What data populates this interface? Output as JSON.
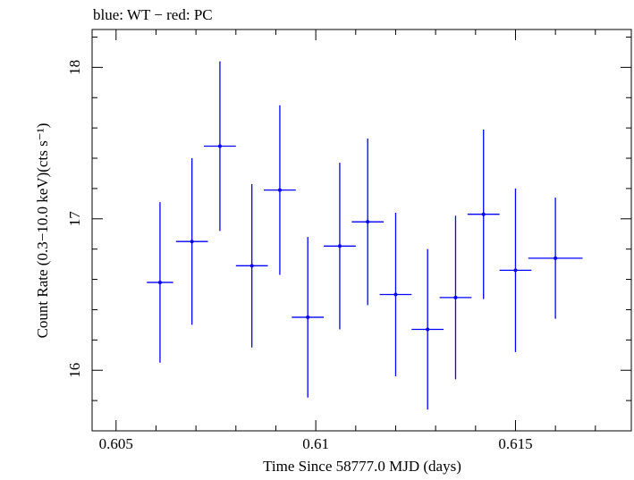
{
  "chart_data": {
    "type": "scatter",
    "title": "blue: WT − red: PC",
    "xlabel": "Time Since 58777.0 MJD (days)",
    "ylabel": "Count Rate (0.3−10.0 keV)(cts s⁻¹)",
    "xlim": [
      0.6044,
      0.6179
    ],
    "ylim": [
      15.6,
      18.25
    ],
    "x_ticks": [
      0.605,
      0.61,
      0.615
    ],
    "x_tick_labels": [
      "0.605",
      "0.61",
      "0.615"
    ],
    "y_ticks": [
      16,
      17,
      18
    ],
    "y_tick_labels": [
      "16",
      "17",
      "18"
    ],
    "grid": false,
    "series": [
      {
        "color": "#0000ff",
        "points": [
          {
            "x": 0.6061,
            "y": 16.58,
            "xerr": 0.00033,
            "yerr": 0.53
          },
          {
            "x": 0.6069,
            "y": 16.85,
            "xerr": 0.0004,
            "yerr": 0.55
          },
          {
            "x": 0.6076,
            "y": 17.48,
            "xerr": 0.0004,
            "yerr": 0.56
          },
          {
            "x": 0.6084,
            "y": 16.69,
            "xerr": 0.0004,
            "yerr": 0.54
          },
          {
            "x": 0.6091,
            "y": 17.19,
            "xerr": 0.0004,
            "yerr": 0.56
          },
          {
            "x": 0.6098,
            "y": 16.35,
            "xerr": 0.0004,
            "yerr": 0.53
          },
          {
            "x": 0.6106,
            "y": 16.82,
            "xerr": 0.0004,
            "yerr": 0.55
          },
          {
            "x": 0.6113,
            "y": 16.98,
            "xerr": 0.0004,
            "yerr": 0.55
          },
          {
            "x": 0.612,
            "y": 16.5,
            "xerr": 0.0004,
            "yerr": 0.54
          },
          {
            "x": 0.6128,
            "y": 16.27,
            "xerr": 0.0004,
            "yerr": 0.53
          },
          {
            "x": 0.6135,
            "y": 16.48,
            "xerr": 0.0004,
            "yerr": 0.54
          },
          {
            "x": 0.6142,
            "y": 17.03,
            "xerr": 0.0004,
            "yerr": 0.56
          },
          {
            "x": 0.615,
            "y": 16.66,
            "xerr": 0.0004,
            "yerr": 0.54
          },
          {
            "x": 0.616,
            "y": 16.74,
            "xerr": 0.00068,
            "yerr": 0.4
          }
        ]
      }
    ]
  }
}
